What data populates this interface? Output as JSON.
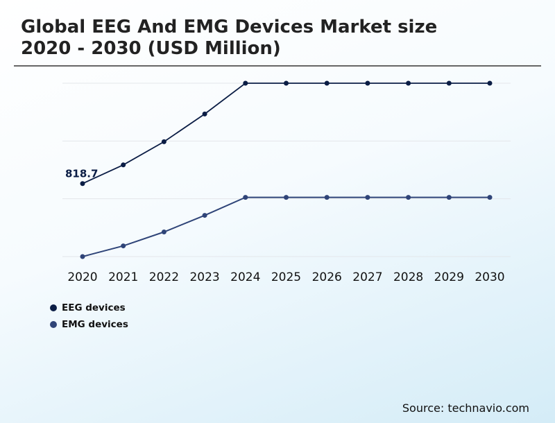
{
  "title_line1": "Global EEG And EMG Devices Market size",
  "title_line2": "2020 - 2030 (USD Million)",
  "source": "Source: technavio.com",
  "colors": {
    "eeg": "#0b1d45",
    "emg": "#2f4478",
    "grid": "#e3e6ea"
  },
  "chart_data": {
    "type": "line",
    "title": "Global EEG And EMG Devices Market size 2020 - 2030 (USD Million)",
    "x": [
      "2020",
      "2021",
      "2022",
      "2023",
      "2024",
      "2025",
      "2026",
      "2027",
      "2028",
      "2029",
      "2030"
    ],
    "series": [
      {
        "name": "EEG devices",
        "values": [
          818.7,
          1028,
          1288,
          1599,
          1944,
          1944,
          1944,
          1944,
          1944,
          1944,
          1944
        ]
      },
      {
        "name": "EMG devices",
        "values": [
          0,
          120,
          276,
          462,
          664,
          664,
          664,
          664,
          664,
          664,
          664
        ]
      }
    ],
    "data_labels": [
      {
        "series": "EEG devices",
        "x": "2020",
        "text": "818.7"
      }
    ],
    "ylim": [
      0,
      1944
    ],
    "y_gridlines": [
      0,
      648,
      1296,
      1944
    ],
    "grid": true,
    "y_axis_labels_shown": false,
    "legend": "bottom-left"
  }
}
